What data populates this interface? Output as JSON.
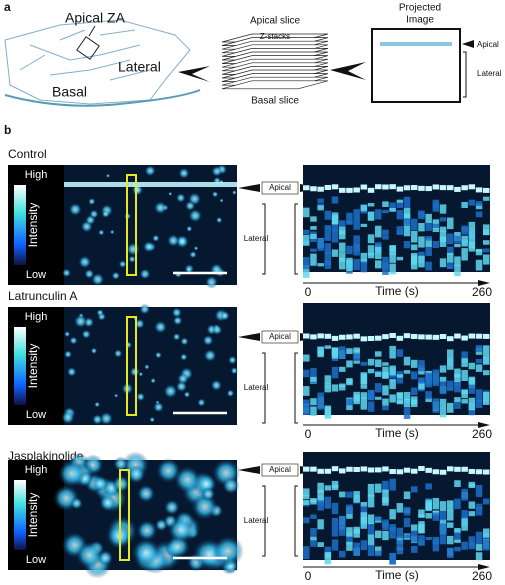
{
  "panel_a": {
    "label": "a",
    "cell_labels": [
      "Apical ZA",
      "Lateral",
      "Basal"
    ],
    "stack": {
      "top": "Apical slice",
      "middle": "Z-stacks",
      "bottom": "Basal slice"
    },
    "projected": {
      "title": [
        "Projected",
        "Image"
      ],
      "apical": "Apical",
      "lateral": "Lateral"
    }
  },
  "panel_b": {
    "label": "b",
    "conditions": [
      {
        "name": "Control",
        "colorbar": {
          "high": "High",
          "title": "Intensity",
          "low": "Low"
        },
        "apical": "Apical",
        "lateral": "Lateral",
        "time_axis": {
          "start": 0,
          "label": "Time (s)",
          "end": 260
        }
      },
      {
        "name": "Latrunculin A",
        "colorbar": {
          "high": "High",
          "title": "Intensity",
          "low": "Low"
        },
        "apical": "Apical",
        "lateral": "Lateral",
        "time_axis": {
          "start": 0,
          "label": "Time (s)",
          "end": 260
        }
      },
      {
        "name": "Jasplakinolide",
        "colorbar": {
          "high": "High",
          "title": "Intensity",
          "low": "Low"
        },
        "apical": "Apical",
        "lateral": "Lateral",
        "time_axis": {
          "start": 0,
          "label": "Time (s)",
          "end": 260
        }
      }
    ]
  }
}
